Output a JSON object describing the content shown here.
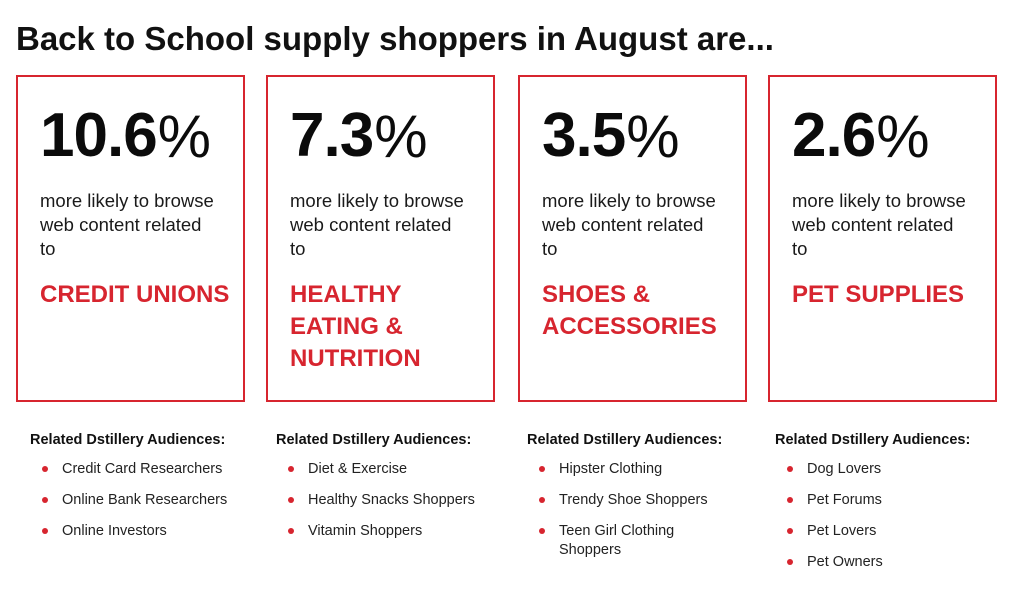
{
  "headline": "Back to School supply shoppers in August are...",
  "colors": {
    "accent": "#d7252f",
    "text": "#111111"
  },
  "cards": [
    {
      "stat": "10.6",
      "pct": "%",
      "desc": "more likely to browse web content related to",
      "topic": "CREDIT UNIONS",
      "audience_heading": "Related Dstillery Audiences:",
      "audiences": [
        "Credit Card Researchers",
        "Online Bank Researchers",
        "Online Investors"
      ]
    },
    {
      "stat": "7.3",
      "pct": "%",
      "desc": "more likely to browse web content related to",
      "topic": "HEALTHY EATING & NUTRITION",
      "audience_heading": "Related Dstillery Audiences:",
      "audiences": [
        "Diet & Exercise",
        "Healthy Snacks Shoppers",
        "Vitamin Shoppers"
      ]
    },
    {
      "stat": "3.5",
      "pct": "%",
      "desc": "more likely to browse web content related to",
      "topic": "SHOES & ACCESSORIES",
      "audience_heading": "Related Dstillery Audiences:",
      "audiences": [
        "Hipster Clothing",
        "Trendy Shoe Shoppers",
        "Teen Girl Clothing Shoppers"
      ]
    },
    {
      "stat": "2.6",
      "pct": "%",
      "desc": "more likely to browse web content related to",
      "topic": "PET SUPPLIES",
      "audience_heading": "Related Dstillery Audiences:",
      "audiences": [
        "Dog Lovers",
        "Pet Forums",
        "Pet Lovers",
        "Pet Owners"
      ]
    }
  ]
}
